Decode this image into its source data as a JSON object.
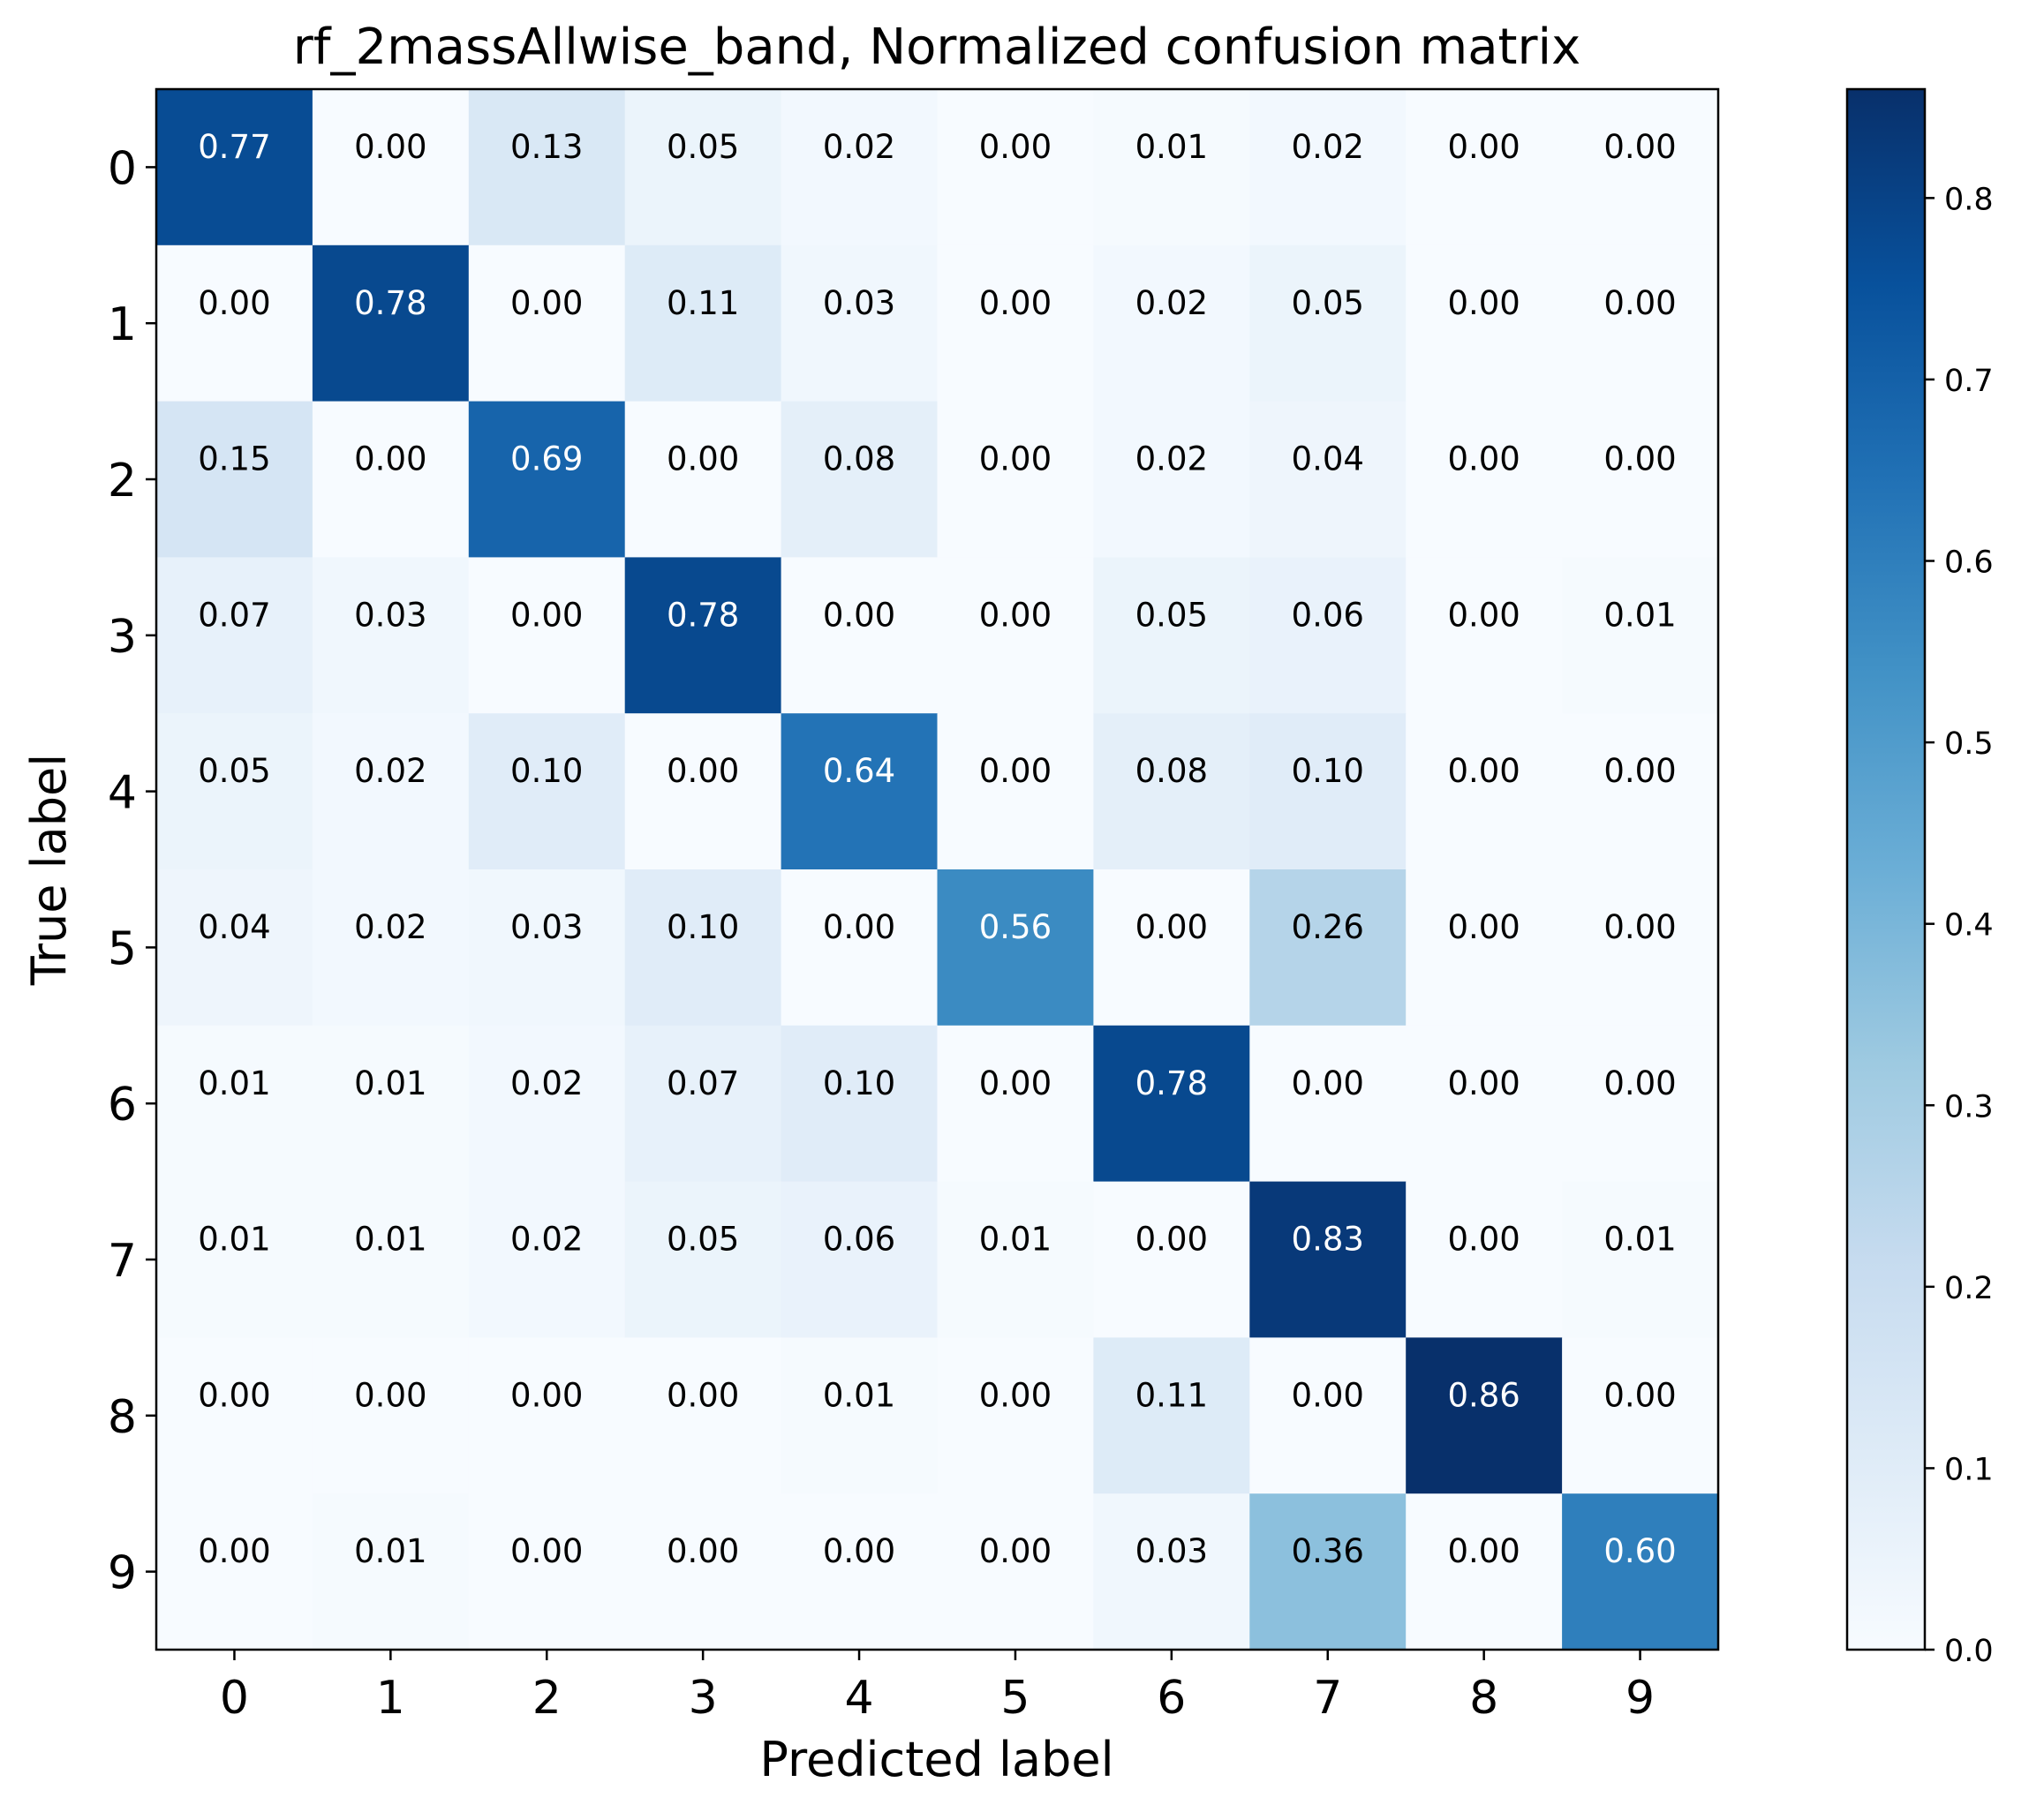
{
  "chart_data": {
    "type": "heatmap",
    "title": "rf_2massAllwise_band, Normalized confusion matrix",
    "xlabel": "Predicted label",
    "ylabel": "True label",
    "x_categories": [
      "0",
      "1",
      "2",
      "3",
      "4",
      "5",
      "6",
      "7",
      "8",
      "9"
    ],
    "y_categories": [
      "0",
      "1",
      "2",
      "3",
      "4",
      "5",
      "6",
      "7",
      "8",
      "9"
    ],
    "values": [
      [
        0.77,
        0.0,
        0.13,
        0.05,
        0.02,
        0.0,
        0.01,
        0.02,
        0.0,
        0.0
      ],
      [
        0.0,
        0.78,
        0.0,
        0.11,
        0.03,
        0.0,
        0.02,
        0.05,
        0.0,
        0.0
      ],
      [
        0.15,
        0.0,
        0.69,
        0.0,
        0.08,
        0.0,
        0.02,
        0.04,
        0.0,
        0.0
      ],
      [
        0.07,
        0.03,
        0.0,
        0.78,
        0.0,
        0.0,
        0.05,
        0.06,
        0.0,
        0.01
      ],
      [
        0.05,
        0.02,
        0.1,
        0.0,
        0.64,
        0.0,
        0.08,
        0.1,
        0.0,
        0.0
      ],
      [
        0.04,
        0.02,
        0.03,
        0.1,
        0.0,
        0.56,
        0.0,
        0.26,
        0.0,
        0.0
      ],
      [
        0.01,
        0.01,
        0.02,
        0.07,
        0.1,
        0.0,
        0.78,
        0.0,
        0.0,
        0.0
      ],
      [
        0.01,
        0.01,
        0.02,
        0.05,
        0.06,
        0.01,
        0.0,
        0.83,
        0.0,
        0.01
      ],
      [
        0.0,
        0.0,
        0.0,
        0.0,
        0.01,
        0.0,
        0.11,
        0.0,
        0.86,
        0.0
      ],
      [
        0.0,
        0.01,
        0.0,
        0.0,
        0.0,
        0.0,
        0.03,
        0.36,
        0.0,
        0.6
      ]
    ],
    "colormap": "Blues",
    "colorbar": {
      "range": [
        0.0,
        0.86
      ],
      "ticks": [
        "0.0",
        "0.1",
        "0.2",
        "0.3",
        "0.4",
        "0.5",
        "0.6",
        "0.7",
        "0.8"
      ]
    },
    "grid": false,
    "legend": "colorbar-right"
  }
}
